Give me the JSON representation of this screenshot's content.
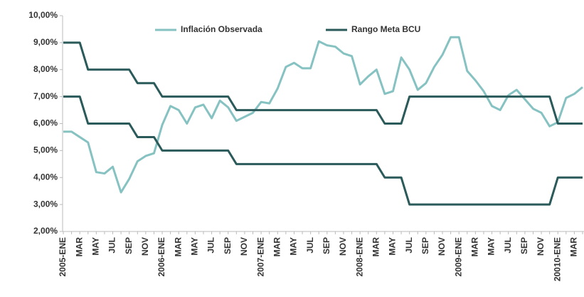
{
  "chart_data": {
    "type": "line",
    "categories": [
      "2005-ENE",
      null,
      "MAR",
      null,
      "MAY",
      null,
      "JUL",
      null,
      "SEP",
      null,
      "NOV",
      null,
      "2006-ENE",
      null,
      "MAR",
      null,
      "MAY",
      null,
      "JUL",
      null,
      "SEP",
      null,
      "NOV",
      null,
      "2007-ENE",
      null,
      "MAR",
      null,
      "MAY",
      null,
      "JUL",
      null,
      "SEP",
      null,
      "NOV",
      null,
      "2008-ENE",
      null,
      "MAR",
      null,
      "MAY",
      null,
      "JUL",
      null,
      "SEP",
      null,
      "NOV",
      null,
      "2009-ENE",
      null,
      "MAR",
      null,
      "MAY",
      null,
      "JUL",
      null,
      "SEP",
      null,
      "NOV",
      null,
      "20010-ENE",
      null,
      "MAR",
      null
    ],
    "series": [
      {
        "name": "Inflación Observada",
        "color": "#86c2c2",
        "values": [
          5.7,
          5.7,
          5.5,
          5.3,
          4.2,
          4.15,
          4.4,
          3.45,
          3.95,
          4.6,
          4.8,
          4.9,
          5.95,
          6.65,
          6.5,
          6.0,
          6.6,
          6.7,
          6.2,
          6.85,
          6.6,
          6.1,
          6.25,
          6.4,
          6.8,
          6.75,
          7.3,
          8.1,
          8.25,
          8.05,
          8.05,
          9.05,
          8.9,
          8.85,
          8.6,
          8.5,
          7.45,
          7.75,
          8.0,
          7.1,
          7.2,
          8.45,
          8.0,
          7.25,
          7.5,
          8.1,
          8.55,
          9.2,
          9.2,
          7.95,
          7.6,
          7.2,
          6.65,
          6.5,
          7.05,
          7.25,
          6.9,
          6.55,
          6.4,
          5.9,
          6.05,
          6.95,
          7.1,
          7.35
        ]
      },
      {
        "name": "Rango Meta BCU",
        "color": "#2b5a5a",
        "values": [
          9,
          9,
          9,
          8,
          8,
          8,
          8,
          8,
          8,
          7.5,
          7.5,
          7.5,
          7,
          7,
          7,
          7,
          7,
          7,
          7,
          7,
          7,
          6.5,
          6.5,
          6.5,
          6.5,
          6.5,
          6.5,
          6.5,
          6.5,
          6.5,
          6.5,
          6.5,
          6.5,
          6.5,
          6.5,
          6.5,
          6.5,
          6.5,
          6.5,
          6,
          6,
          6,
          7,
          7,
          7,
          7,
          7,
          7,
          7,
          7,
          7,
          7,
          7,
          7,
          7,
          7,
          7,
          7,
          7,
          7,
          6,
          6,
          6,
          6
        ],
        "values_low": [
          7,
          7,
          7,
          6,
          6,
          6,
          6,
          6,
          6,
          5.5,
          5.5,
          5.5,
          5,
          5,
          5,
          5,
          5,
          5,
          5,
          5,
          5,
          4.5,
          4.5,
          4.5,
          4.5,
          4.5,
          4.5,
          4.5,
          4.5,
          4.5,
          4.5,
          4.5,
          4.5,
          4.5,
          4.5,
          4.5,
          4.5,
          4.5,
          4.5,
          4,
          4,
          4,
          3,
          3,
          3,
          3,
          3,
          3,
          3,
          3,
          3,
          3,
          3,
          3,
          3,
          3,
          3,
          3,
          3,
          3,
          4,
          4,
          4,
          4
        ]
      }
    ],
    "ylim": [
      2,
      10
    ],
    "yticks": [
      {
        "value": 2,
        "label": "2,00%"
      },
      {
        "value": 3,
        "label": "3,00%"
      },
      {
        "value": 4,
        "label": "4,00%"
      },
      {
        "value": 5,
        "label": "5,00%"
      },
      {
        "value": 6,
        "label": "6,00%"
      },
      {
        "value": 7,
        "label": "7,00%"
      },
      {
        "value": 8,
        "label": "8,00%"
      },
      {
        "value": 9,
        "label": "9,00%"
      },
      {
        "value": 10,
        "label": "10,00%"
      }
    ],
    "grid": false,
    "legend": "top"
  }
}
